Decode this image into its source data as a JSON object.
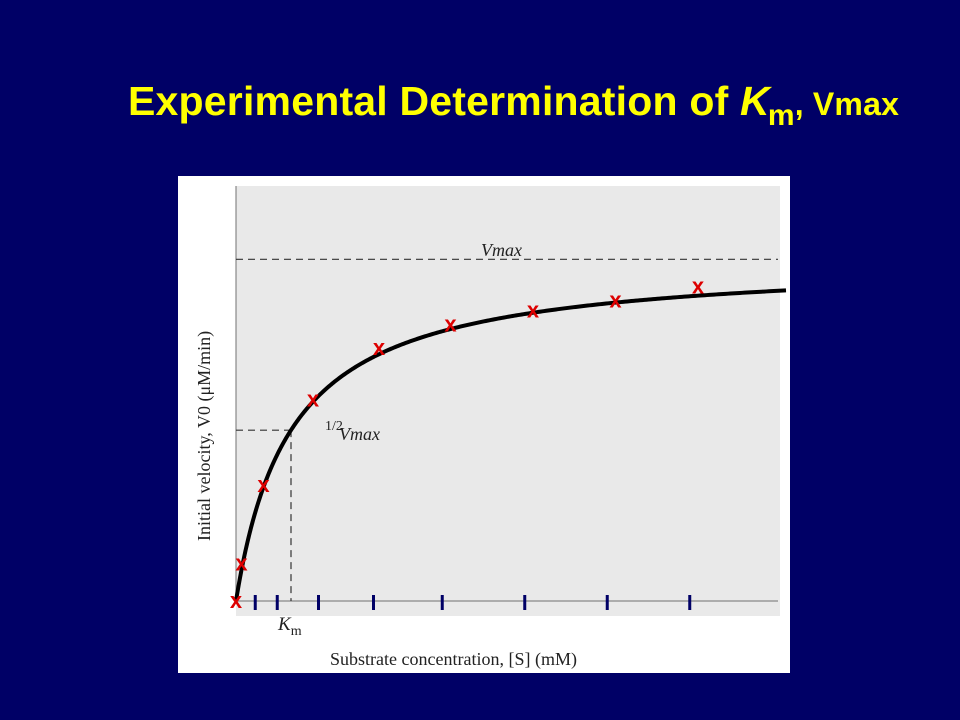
{
  "slide": {
    "title_main": "Experimental Determination of ",
    "title_K": "K",
    "title_sub": "m",
    "title_rest": ", Vmax"
  },
  "colors": {
    "background": "#000066",
    "title": "#ffff00",
    "marker": "#dd0000",
    "tick": "#000066",
    "panel": "#e9e9e9"
  },
  "chart_data": {
    "type": "scatter",
    "title": "",
    "xlabel": "Substrate concentration, [S] (mM)",
    "ylabel": "Initial velocity, V0 (μM/min)",
    "xlim": [
      0,
      10
    ],
    "ylim": [
      0,
      1.2
    ],
    "grid": false,
    "curve": {
      "model": "Michaelis-Menten",
      "Vmax": 1.0,
      "Km": 1.0
    },
    "reference_lines": [
      {
        "label": "Vmax",
        "y": 1.0
      },
      {
        "label_frac": "1/2",
        "label": "Vmax",
        "y": 0.5
      }
    ],
    "km_marker": {
      "label": "K",
      "label_sub": "m",
      "x": 1.0
    },
    "x_ticks": [
      0.35,
      0.75,
      1.5,
      2.5,
      3.75,
      5.25,
      6.75,
      8.25
    ],
    "points": [
      {
        "x": 0,
        "y": 0
      },
      {
        "x": 0.1,
        "y": 0.11
      },
      {
        "x": 0.5,
        "y": 0.34
      },
      {
        "x": 1.4,
        "y": 0.59
      },
      {
        "x": 2.6,
        "y": 0.74
      },
      {
        "x": 3.9,
        "y": 0.81
      },
      {
        "x": 5.4,
        "y": 0.85
      },
      {
        "x": 6.9,
        "y": 0.88
      },
      {
        "x": 8.4,
        "y": 0.92
      }
    ],
    "marker_symbol": "x"
  }
}
